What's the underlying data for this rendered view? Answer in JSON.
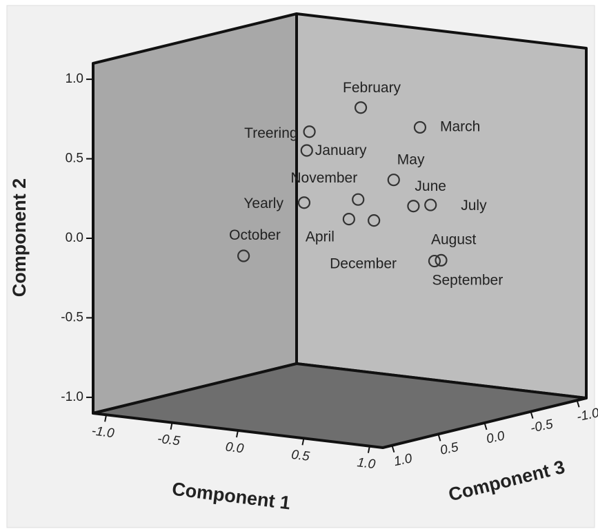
{
  "chart_data": {
    "type": "scatter3d",
    "xlabel": "Component 1",
    "ylabel": "Component 2",
    "zlabel": "Component 3",
    "labels": [
      "February",
      "March",
      "Treering",
      "January",
      "May",
      "November",
      "Yearly",
      "June",
      "July",
      "April",
      "December",
      "October",
      "August",
      "September"
    ],
    "x": [
      0.16,
      0.61,
      -0.23,
      -0.25,
      0.41,
      0.14,
      -0.27,
      0.56,
      0.69,
      0.07,
      0.26,
      -0.73,
      0.72,
      0.77
    ],
    "y": [
      0.79,
      0.71,
      0.6,
      0.48,
      0.36,
      0.21,
      0.15,
      0.21,
      0.23,
      0.08,
      0.09,
      -0.23,
      -0.12,
      -0.11
    ],
    "z": [
      0,
      0,
      0,
      0,
      0,
      0,
      0,
      0,
      0,
      0,
      0,
      0,
      0,
      0
    ],
    "xlim": [
      -1.1,
      1.1
    ],
    "ylim": [
      -1.1,
      1.1
    ],
    "zlim": [
      -1.1,
      1.1
    ],
    "xticks": [
      {
        "value": -1,
        "label": "-1.0"
      },
      {
        "value": -0.5,
        "label": "-0.5"
      },
      {
        "value": 0,
        "label": "0.0"
      },
      0.5,
      {
        "value": 1,
        "label": "1.0"
      }
    ],
    "yticks": [
      {
        "value": -1,
        "label": "-1.0"
      },
      {
        "value": -0.5,
        "label": "-0.5"
      },
      {
        "value": 0,
        "label": "0.0"
      },
      0.5,
      {
        "value": 1,
        "label": "1.0"
      }
    ],
    "zticks": [
      {
        "value": -1,
        "label": "-1.0"
      },
      {
        "value": -0.5,
        "label": "-0.5"
      },
      {
        "value": 0,
        "label": "0.0"
      },
      0.5,
      {
        "value": 1,
        "label": "1.0"
      }
    ],
    "marker_color": "#333333"
  }
}
